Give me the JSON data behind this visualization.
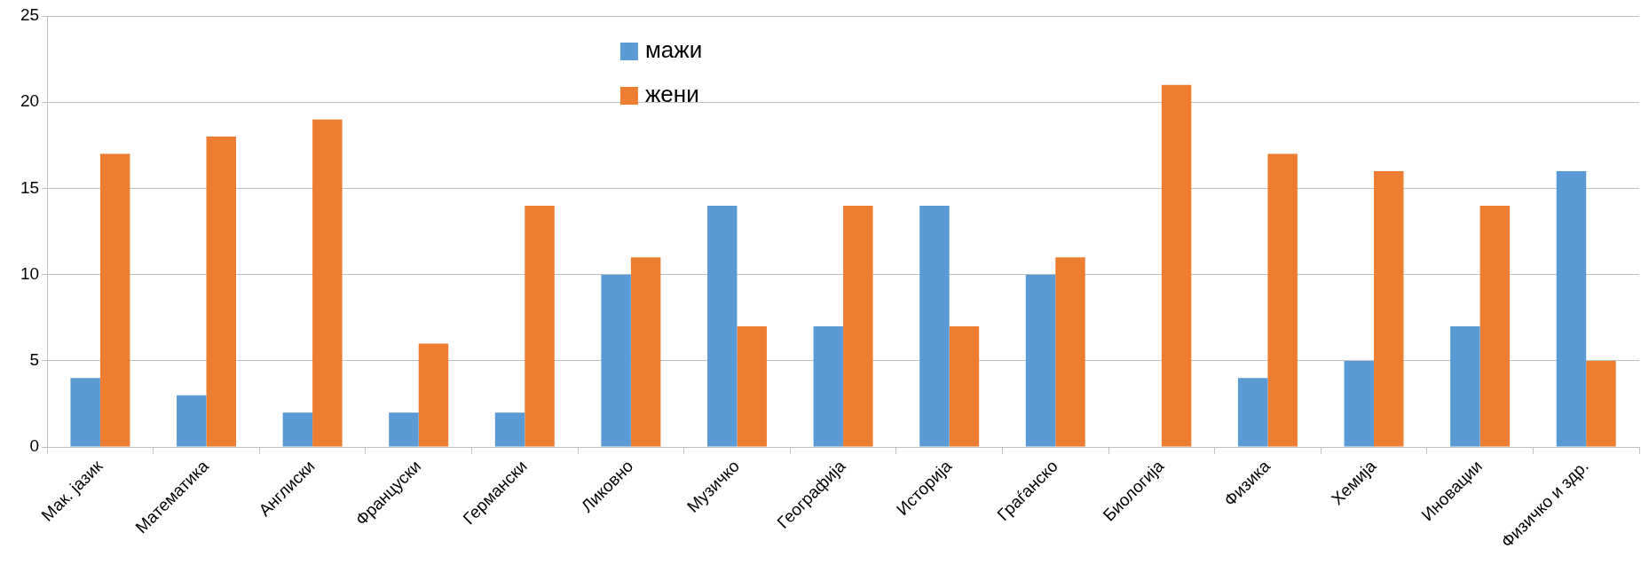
{
  "chart_data": {
    "type": "bar",
    "categories": [
      "Мак. јазик",
      "Математика",
      "Англиски",
      "Француски",
      "Германски",
      "Ликовно",
      "Музичко",
      "Географија",
      "Историја",
      "Граѓанско",
      "Биологија",
      "Физика",
      "Хемија",
      "Иновации",
      "Физичко и здр."
    ],
    "series": [
      {
        "name": "мажи",
        "color": "#5b9bd5",
        "values": [
          4,
          3,
          2,
          2,
          2,
          10,
          14,
          7,
          14,
          10,
          0,
          4,
          5,
          7,
          16
        ]
      },
      {
        "name": "жени",
        "color": "#ed7d31",
        "values": [
          17,
          18,
          19,
          6,
          14,
          11,
          7,
          14,
          7,
          11,
          21,
          17,
          16,
          14,
          5
        ]
      }
    ],
    "ylim": [
      0,
      25
    ],
    "yticks": [
      0,
      5,
      10,
      15,
      20,
      25
    ],
    "grid": "y",
    "legend": "top"
  }
}
